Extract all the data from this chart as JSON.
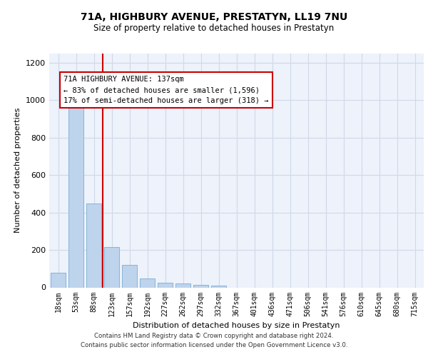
{
  "title_line1": "71A, HIGHBURY AVENUE, PRESTATYN, LL19 7NU",
  "title_line2": "Size of property relative to detached houses in Prestatyn",
  "xlabel": "Distribution of detached houses by size in Prestatyn",
  "ylabel": "Number of detached properties",
  "categories": [
    "18sqm",
    "53sqm",
    "88sqm",
    "123sqm",
    "157sqm",
    "192sqm",
    "227sqm",
    "262sqm",
    "297sqm",
    "332sqm",
    "367sqm",
    "401sqm",
    "436sqm",
    "471sqm",
    "506sqm",
    "541sqm",
    "576sqm",
    "610sqm",
    "645sqm",
    "680sqm",
    "715sqm"
  ],
  "values": [
    80,
    975,
    450,
    215,
    120,
    48,
    25,
    22,
    15,
    8,
    0,
    0,
    0,
    0,
    0,
    0,
    0,
    0,
    0,
    0,
    0
  ],
  "bar_color": "#bed3ec",
  "bar_edge_color": "#7aadd4",
  "grid_color": "#d0d8e8",
  "bg_color": "#edf2fb",
  "annotation_box_color": "#cc0000",
  "vline_color": "#cc0000",
  "annotation_text_line1": "71A HIGHBURY AVENUE: 137sqm",
  "annotation_text_line2": "← 83% of detached houses are smaller (1,596)",
  "annotation_text_line3": "17% of semi-detached houses are larger (318) →",
  "footer_line1": "Contains HM Land Registry data © Crown copyright and database right 2024.",
  "footer_line2": "Contains public sector information licensed under the Open Government Licence v3.0.",
  "ylim": [
    0,
    1250
  ],
  "yticks": [
    0,
    200,
    400,
    600,
    800,
    1000,
    1200
  ]
}
